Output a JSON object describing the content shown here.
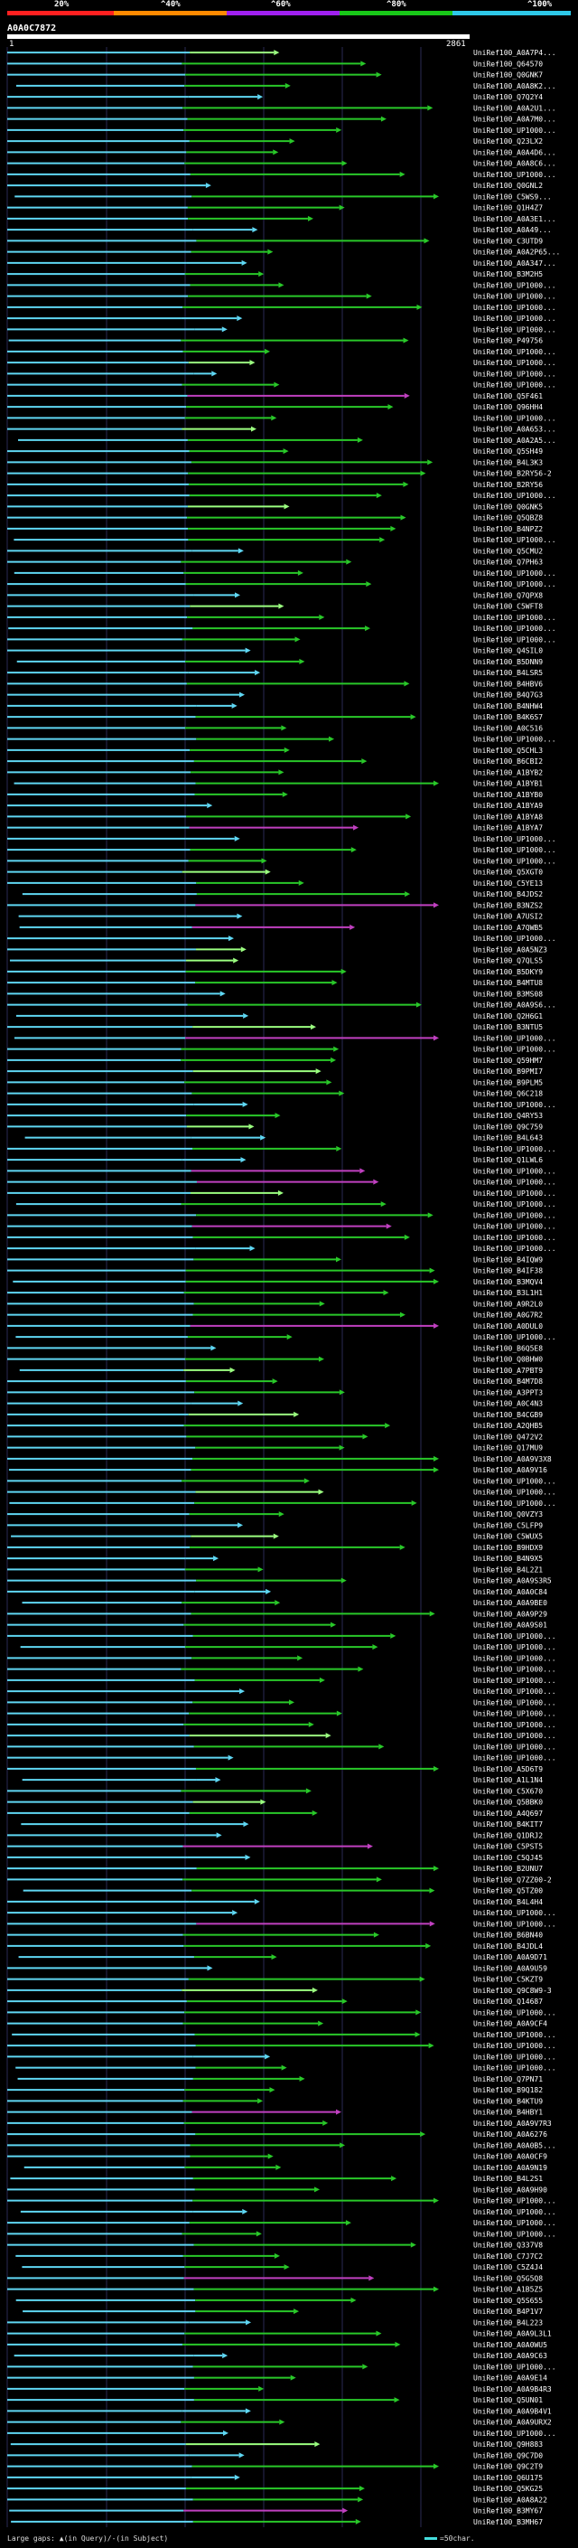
{
  "legend": {
    "percent_labels": [
      "20%",
      "^40%",
      "^60%",
      "^80%",
      "^100%"
    ],
    "colors": [
      "#ff2020",
      "#ff8a00",
      "#a020f0",
      "#18c818",
      "#2ec8e8"
    ]
  },
  "query": {
    "id": "A0A0C7872",
    "start": "1",
    "end": "2861"
  },
  "footer": {
    "gap_text": "Large gaps: ▲(in Query)/-(in Subject)",
    "scale_text": "=50char."
  },
  "colors": {
    "cyan": "#5fd7f3",
    "green": "#29c829",
    "magenta": "#c040c0",
    "lime": "#9bff80"
  },
  "hit_ids": [
    "UniRef100_A0A7P4...",
    "UniRef100_Q64570",
    "UniRef100_Q0GNK7",
    "UniRef100_A0A8K2...",
    "UniRef100_Q7Q2Y4",
    "UniRef100_A0A2U1...",
    "UniRef100_A0A7M0...",
    "UniRef100_UP1000...",
    "UniRef100_Q23LX2",
    "UniRef100_A0A4D6...",
    "UniRef100_A0A8C6...",
    "UniRef100_UP1000...",
    "UniRef100_Q0GNL2",
    "UniRef100_C5WS9...",
    "UniRef100_Q1H4Z7",
    "UniRef100_A0A3E1...",
    "UniRef100_A0A49...",
    "UniRef100_C3UTD9",
    "UniRef100_A0A2P65...",
    "UniRef100_A0A347...",
    "UniRef100_B3M2H5",
    "UniRef100_UP1000...",
    "UniRef100_UP1000...",
    "UniRef100_UP1000...",
    "UniRef100_UP1000...",
    "UniRef100_UP1000...",
    "UniRef100_P49756",
    "UniRef100_UP1000...",
    "UniRef100_UP1000...",
    "UniRef100_UP1000...",
    "UniRef100_UP1000...",
    "UniRef100_Q5F461",
    "UniRef100_Q96HH4",
    "UniRef100_UP1000...",
    "UniRef100_A0A653...",
    "UniRef100_A0A2A5...",
    "UniRef100_Q5SH49",
    "UniRef100_B4L3K3",
    "UniRef100_B2RY56-2",
    "UniRef100_B2RY56",
    "UniRef100_UP1000...",
    "UniRef100_Q0GNK5",
    "UniRef100_Q5QBZ8",
    "UniRef100_B4NPZ2",
    "UniRef100_UP1000...",
    "UniRef100_Q5CMU2",
    "UniRef100_Q7PH63",
    "UniRef100_UP1000...",
    "UniRef100_UP1000...",
    "UniRef100_Q7QPX8",
    "UniRef100_C5WFT8",
    "UniRef100_UP1000...",
    "UniRef100_UP1000...",
    "UniRef100_UP1000...",
    "UniRef100_Q4SIL0",
    "UniRef100_B5DNN9",
    "UniRef100_B4LSR5",
    "UniRef100_B4HBV6",
    "UniRef100_B4Q7G3",
    "UniRef100_B4NHW4",
    "UniRef100_B4K6S7",
    "UniRef100_A0C516",
    "UniRef100_UP1000...",
    "UniRef100_Q5CHL3",
    "UniRef100_B6CBI2",
    "UniRef100_A1BYB2",
    "UniRef100_A1BYB1",
    "UniRef100_A1BYB0",
    "UniRef100_A1BYA9",
    "UniRef100_A1BYA8",
    "UniRef100_A1BYA7",
    "UniRef100_UP1000...",
    "UniRef100_UP1000...",
    "UniRef100_UP1000...",
    "UniRef100_Q5XGT0",
    "UniRef100_C5YE13",
    "UniRef100_B4JDS2",
    "UniRef100_B3NZS2",
    "UniRef100_A7USI2",
    "UniRef100_A7QWB5",
    "UniRef100_UP1000...",
    "UniRef100_A0A5NZ3",
    "UniRef100_Q7QLS5",
    "UniRef100_B5DKY9",
    "UniRef100_B4MTU8",
    "UniRef100_B3MS08",
    "UniRef100_A0A9S6...",
    "UniRef100_Q2H6G1",
    "UniRef100_B3NTU5",
    "UniRef100_UP1000...",
    "UniRef100_UP1000...",
    "UniRef100_Q59HM7",
    "UniRef100_B9PMI7",
    "UniRef100_B9PLM5",
    "UniRef100_Q6C218",
    "UniRef100_UP1000...",
    "UniRef100_Q4RY53",
    "UniRef100_Q9C759",
    "UniRef100_B4L643",
    "UniRef100_UP1000...",
    "UniRef100_Q1LWL6",
    "UniRef100_UP1000...",
    "UniRef100_UP1000...",
    "UniRef100_UP1000...",
    "UniRef100_UP1000...",
    "UniRef100_UP1000...",
    "UniRef100_UP1000...",
    "UniRef100_UP1000...",
    "UniRef100_UP1000...",
    "UniRef100_B4IQW9",
    "UniRef100_B4IF38",
    "UniRef100_B3MQV4",
    "UniRef100_B3L1H1",
    "UniRef100_A9R2L0",
    "UniRef100_A0G7R2",
    "UniRef100_A0DUL0",
    "UniRef100_UP1000...",
    "UniRef100_B6Q5E8",
    "UniRef100_Q0BHW0",
    "UniRef100_A7PBT9",
    "UniRef100_B4M7D8",
    "UniRef100_A3PPT3",
    "UniRef100_A0C4N3",
    "UniRef100_B4CGB9",
    "UniRef100_A2QHB5",
    "UniRef100_Q472V2",
    "UniRef100_Q17MU9",
    "UniRef100_A0A9V3X8",
    "UniRef100_A0A9V16",
    "UniRef100_UP1000...",
    "UniRef100_UP1000...",
    "UniRef100_UP1000...",
    "UniRef100_Q0VZY3",
    "UniRef100_C5LFP9",
    "UniRef100_C5WUX5",
    "UniRef100_B9HDX9",
    "UniRef100_B4N9X5",
    "UniRef100_B4L2Z1",
    "UniRef100_A0A9S3R5",
    "UniRef100_A0A0C84",
    "UniRef100_A0A9BE0",
    "UniRef100_A0A9P29",
    "UniRef100_A0A9S01",
    "UniRef100_UP1000...",
    "UniRef100_UP1000...",
    "UniRef100_UP1000...",
    "UniRef100_UP1000...",
    "UniRef100_UP1000...",
    "UniRef100_UP1000...",
    "UniRef100_UP1000...",
    "UniRef100_UP1000...",
    "UniRef100_UP1000...",
    "UniRef100_UP1000...",
    "UniRef100_UP1000...",
    "UniRef100_UP1000...",
    "UniRef100_A5D6T9",
    "UniRef100_A1L1N4",
    "UniRef100_C5X670",
    "UniRef100_Q5BBK0",
    "UniRef100_A4Q697",
    "UniRef100_B4KIT7",
    "UniRef100_Q1DRJ2",
    "UniRef100_C5PST5",
    "UniRef100_C5QJ45",
    "UniRef100_B2UNU7",
    "UniRef100_Q7ZZ00-2",
    "UniRef100_Q5TZ00",
    "UniRef100_B4L4H4",
    "UniRef100_UP1000...",
    "UniRef100_UP1000...",
    "UniRef100_B6BN40",
    "UniRef100_B4JDL4",
    "UniRef100_A0A9D71",
    "UniRef100_A0A9U59",
    "UniRef100_C5KZT9",
    "UniRef100_Q9C8W9-3",
    "UniRef100_Q14687",
    "UniRef100_UP1000...",
    "UniRef100_A0A9CF4",
    "UniRef100_UP1000...",
    "UniRef100_UP1000...",
    "UniRef100_UP1000...",
    "UniRef100_UP1000...",
    "UniRef100_Q7PN71",
    "UniRef100_B9Q182",
    "UniRef100_B4KTU9",
    "UniRef100_B4HBY1",
    "UniRef100_A0A9V7R3",
    "UniRef100_A0A6276",
    "UniRef100_A0A0B5...",
    "UniRef100_A0A0CF9",
    "UniRef100_A0A9N19",
    "UniRef100_B4L2S1",
    "UniRef100_A0A9H90",
    "UniRef100_UP1000...",
    "UniRef100_UP1000...",
    "UniRef100_UP1000...",
    "UniRef100_UP1000...",
    "UniRef100_Q337V8",
    "UniRef100_C7J7C2",
    "UniRef100_C5Z4J4",
    "UniRef100_Q5G5Q8",
    "UniRef100_A1B5Z5",
    "UniRef100_Q5S655",
    "UniRef100_B4P1V7",
    "UniRef100_B4L223",
    "UniRef100_A0A9L3L1",
    "UniRef100_A0A0WU5",
    "UniRef100_A0A9C63",
    "UniRef100_UP1000...",
    "UniRef100_A0A9E14",
    "UniRef100_A0A9B4R3",
    "UniRef100_Q5UN01",
    "UniRef100_A0A9B4V1",
    "UniRef100_A0A9URX2",
    "UniRef100_UP1000...",
    "UniRef100_Q9H883",
    "UniRef100_Q9C7D0",
    "UniRef100_Q9C2T9",
    "UniRef100_Q6U175",
    "UniRef100_Q5KG25",
    "UniRef100_A0A8A22",
    "UniRef100_B3MY67",
    "UniRef100_B3MH67"
  ]
}
